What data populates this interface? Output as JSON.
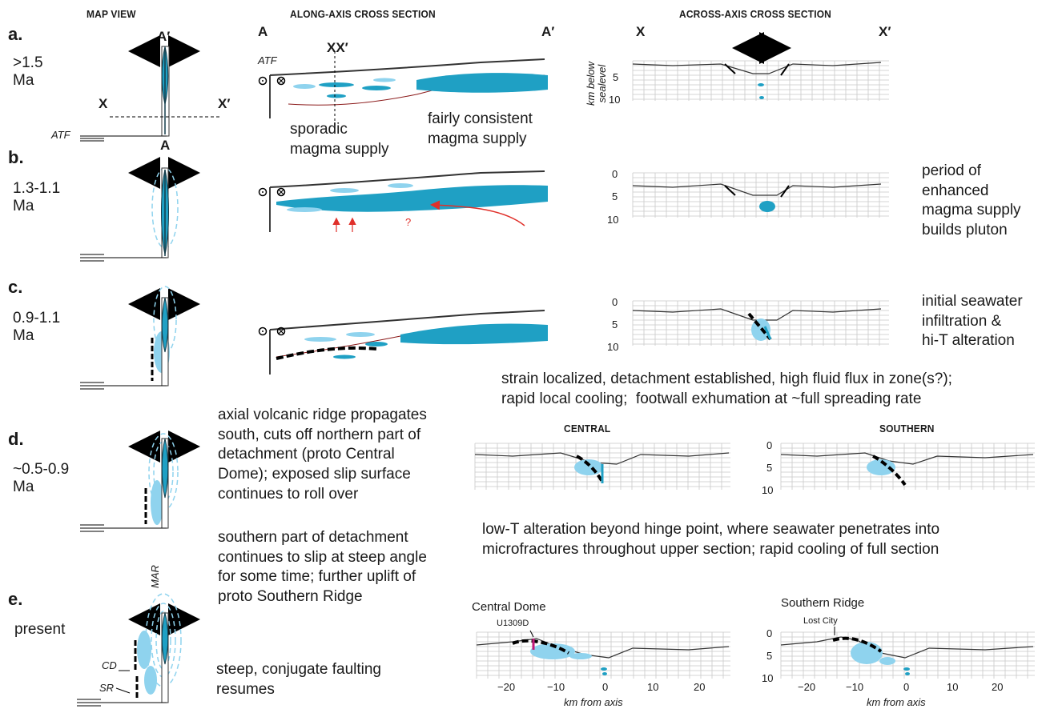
{
  "headers": {
    "map_view": "MAP VIEW",
    "along_axis": "ALONG-AXIS CROSS SECTION",
    "across_axis": "ACROSS-AXIS CROSS SECTION"
  },
  "stages": [
    {
      "letter": "a.",
      "age": ">1.5\nMa"
    },
    {
      "letter": "b.",
      "age": "1.3-1.1\nMa"
    },
    {
      "letter": "c.",
      "age": "0.9-1.1\nMa"
    },
    {
      "letter": "d.",
      "age": "~0.5-0.9\nMa"
    },
    {
      "letter": "e.",
      "age": "present"
    }
  ],
  "map_labels": {
    "a_prime": "A′",
    "a": "A",
    "x": "X",
    "x_prime": "X′",
    "atf": "ATF",
    "mar": "MAR",
    "cd": "CD",
    "sr": "SR"
  },
  "along_labels": {
    "a": "A",
    "a_prime": "A′",
    "xx_prime": "XX′",
    "atf": "ATF",
    "sporadic": "sporadic\nmagma supply",
    "consistent": "fairly consistent\nmagma supply",
    "question": "?"
  },
  "across_labels": {
    "x": "X",
    "x_prime": "X′",
    "ylabel_a": "km below\nsealevel",
    "depth_ticks": [
      "5",
      "10"
    ],
    "depth_ticks_full": [
      "0",
      "5",
      "10"
    ],
    "central": "CENTRAL",
    "southern": "SOUTHERN",
    "central_dome": "Central Dome",
    "southern_ridge": "Southern Ridge",
    "u1309d": "U1309D",
    "lost_city": "Lost City",
    "x_ticks": [
      "−20",
      "−10",
      "0",
      "10",
      "20"
    ],
    "xlabel": "km from axis"
  },
  "descriptions": {
    "b_right": "period of\nenhanced\nmagma supply\nbuilds pluton",
    "c_right": "initial seawater\ninfiltration &\nhi-T alteration",
    "c_strain": "strain localized, detachment established, high fluid flux in zone(s?);\nrapid local cooling;  footwall exhumation at ~full spreading rate",
    "d_text": "axial volcanic ridge propagates\nsouth, cuts off northern part of\ndetachment (proto Central\nDome); exposed slip surface\ncontinues to roll over",
    "d_south": "southern part of detachment\ncontinues to slip at steep angle\nfor some time; further uplift of\nproto Southern Ridge",
    "d_lowT": "low-T alteration beyond hinge point, where seawater penetrates into\nmicrofractures throughout upper section; rapid cooling of full section",
    "e_text": "steep, conjugate faulting\nresumes"
  },
  "colors": {
    "magma": "#1fa0c4",
    "light_magma": "#8fd3ee",
    "moho": "#8b1a1a",
    "arrow_red": "#e0302a",
    "grid": "#c8c8c8",
    "magenta": "#c2187a"
  }
}
